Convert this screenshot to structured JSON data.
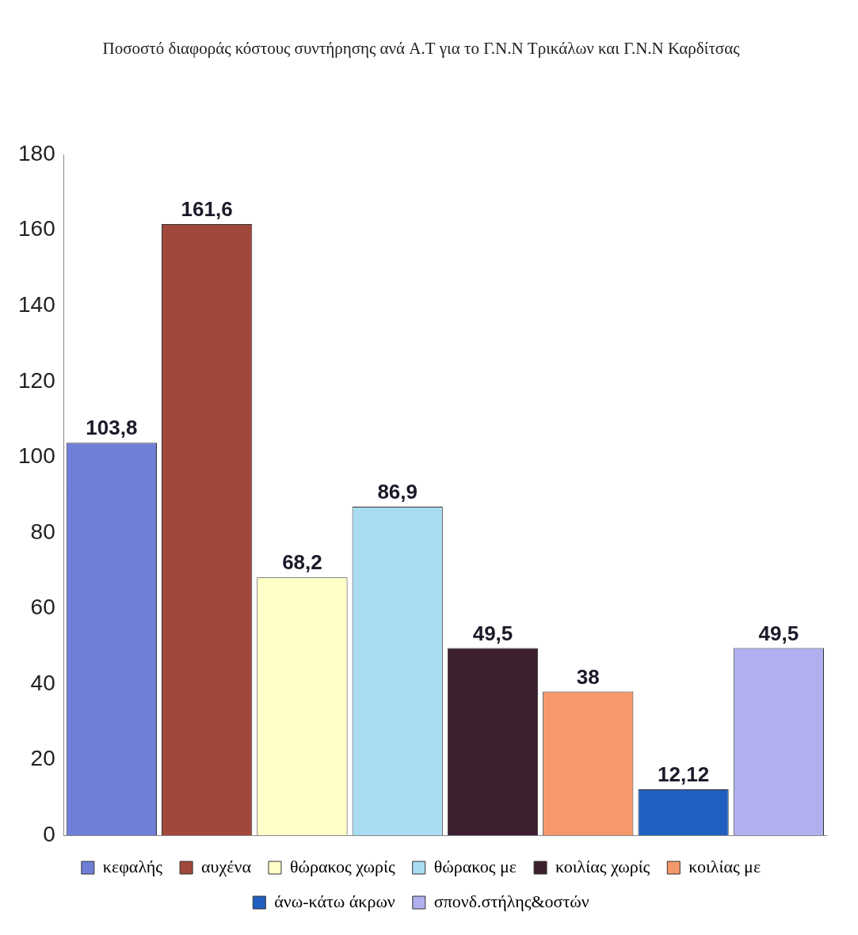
{
  "chart_data": {
    "type": "bar",
    "title": "Ποσοστό διαφοράς κόστους συντήρησης ανά Α.Τ για το Γ.Ν.Ν Τρικάλων και Γ.Ν.Ν Καρδίτσας",
    "categories": [
      "κεφαλής",
      "αυχένα",
      "θώρακος χωρίς",
      "θώρακος με",
      "κοιλίας χωρίς",
      "κοιλίας με",
      "άνω-κάτω άκρων",
      "σπονδ.στήλης&οστών"
    ],
    "values": [
      103.8,
      161.6,
      68.2,
      86.9,
      49.5,
      38,
      12.12,
      49.5
    ],
    "value_labels": [
      "103,8",
      "161,6",
      "68,2",
      "86,9",
      "49,5",
      "38",
      "12,12",
      "49,5"
    ],
    "colors": [
      "#6f7fd8",
      "#a0483a",
      "#ffffc8",
      "#a8dcf0",
      "#3d2030",
      "#f5986a",
      "#2060c0",
      "#b0b0f0"
    ],
    "ylim": [
      0,
      180
    ],
    "yticks": [
      0,
      20,
      40,
      60,
      80,
      100,
      120,
      140,
      160,
      180
    ],
    "grid": false,
    "legend": "bottom",
    "data_labels": true,
    "tick_labels": "y"
  }
}
